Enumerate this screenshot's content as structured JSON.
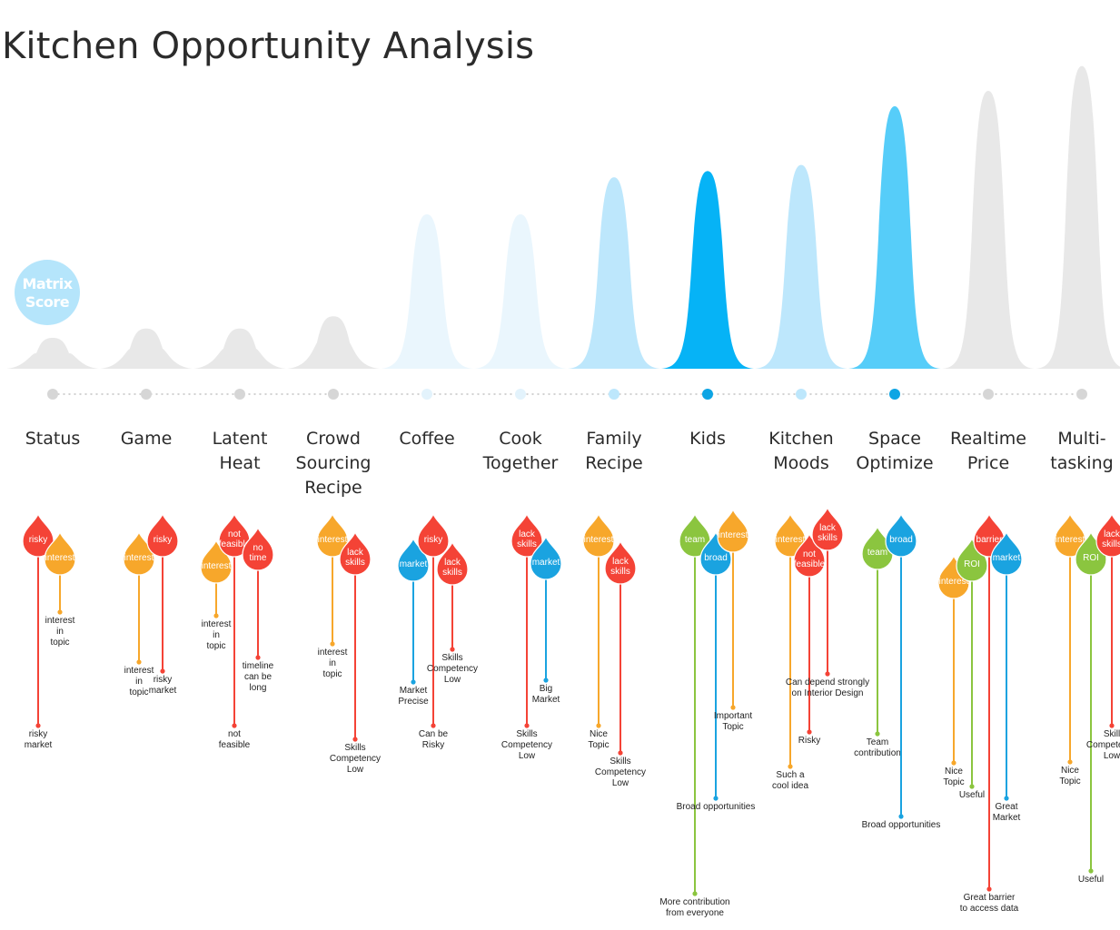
{
  "title": "Kitchen Opportunity Analysis",
  "colors": {
    "risk": "#f44336",
    "interest": "#f7a72b",
    "market": "#1aa3e0",
    "team": "#8bc53f",
    "gray_peak": "#e6e6e6",
    "dot_gray": "#d3d3d3",
    "badge": "#b5e5fb"
  },
  "chart_data": {
    "type": "area",
    "badge": [
      "Matrix",
      "Score"
    ],
    "categories": [
      {
        "label": [
          "Status"
        ],
        "score": 1.0,
        "color": "#e8e8e8",
        "dot": "#d6d6d6",
        "markers": [
          {
            "text": [
              "risky"
            ],
            "kind": "risk",
            "dx": -16,
            "dy": 0,
            "len": 205,
            "note": [
              "risky",
              "market"
            ]
          },
          {
            "text": [
              "interest"
            ],
            "kind": "interest",
            "dx": 8,
            "dy": 20,
            "len": 60,
            "note": [
              "interest",
              "in",
              "topic"
            ]
          }
        ]
      },
      {
        "label": [
          "Game"
        ],
        "score": 1.3,
        "color": "#e8e8e8",
        "dot": "#d6d6d6",
        "markers": [
          {
            "text": [
              "interest"
            ],
            "kind": "interest",
            "dx": -8,
            "dy": 20,
            "len": 115,
            "note": [
              "interest",
              "in",
              "topic"
            ]
          },
          {
            "text": [
              "risky"
            ],
            "kind": "risk",
            "dx": 18,
            "dy": 0,
            "len": 145,
            "note": [
              "risky",
              "market"
            ]
          }
        ]
      },
      {
        "label": [
          "Latent",
          "Heat"
        ],
        "score": 1.3,
        "color": "#e8e8e8",
        "dot": "#d6d6d6",
        "markers": [
          {
            "text": [
              "interest"
            ],
            "kind": "interest",
            "dx": -26,
            "dy": 29,
            "len": 55,
            "note": [
              "interest",
              "in",
              "topic"
            ]
          },
          {
            "text": [
              "not",
              "feasible"
            ],
            "kind": "risk",
            "dx": -6,
            "dy": 0,
            "len": 205,
            "note": [
              "not",
              "feasible"
            ]
          },
          {
            "text": [
              "no",
              "time"
            ],
            "kind": "risk",
            "dx": 20,
            "dy": 15,
            "len": 115,
            "note": [
              "timeline",
              "can be",
              "long"
            ]
          }
        ]
      },
      {
        "label": [
          "Crowd",
          "Sourcing",
          "Recipe"
        ],
        "score": 1.7,
        "color": "#e8e8e8",
        "dot": "#d6d6d6",
        "markers": [
          {
            "text": [
              "interest"
            ],
            "kind": "interest",
            "dx": -1,
            "dy": 0,
            "len": 115,
            "note": [
              "interest",
              "in",
              "topic"
            ]
          },
          {
            "text": [
              "lack",
              "skills"
            ],
            "kind": "risk",
            "dx": 24,
            "dy": 20,
            "len": 200,
            "note": [
              "Skills",
              "Competency",
              "Low"
            ]
          }
        ]
      },
      {
        "label": [
          "Coffee"
        ],
        "score": 5.0,
        "color": "#eaf6fd",
        "dot": "#e3f3fc",
        "markers": [
          {
            "text": [
              "market"
            ],
            "kind": "market",
            "dx": -15,
            "dy": 27,
            "len": 130,
            "note": [
              "Market",
              "Precise"
            ]
          },
          {
            "text": [
              "risky"
            ],
            "kind": "risk",
            "dx": 7,
            "dy": 0,
            "len": 205,
            "note": [
              "Can be",
              "Risky"
            ]
          },
          {
            "text": [
              "lack",
              "skills"
            ],
            "kind": "risk",
            "dx": 28,
            "dy": 31,
            "len": 90,
            "note": [
              "Skills",
              "Competency",
              "Low"
            ]
          }
        ]
      },
      {
        "label": [
          "Cook",
          "Together"
        ],
        "score": 5.0,
        "color": "#eaf6fd",
        "dot": "#e3f3fc",
        "markers": [
          {
            "text": [
              "lack",
              "skills"
            ],
            "kind": "risk",
            "dx": 7,
            "dy": 0,
            "len": 205,
            "note": [
              "Skills",
              "Competency",
              "Low"
            ]
          },
          {
            "text": [
              "market"
            ],
            "kind": "market",
            "dx": 28,
            "dy": 25,
            "len": 130,
            "note": [
              "Big",
              "Market"
            ]
          }
        ]
      },
      {
        "label": [
          "Family",
          "Recipe"
        ],
        "score": 6.2,
        "color": "#bde7fc",
        "dot": "#bde7fc",
        "markers": [
          {
            "text": [
              "interest"
            ],
            "kind": "interest",
            "dx": -17,
            "dy": 0,
            "len": 205,
            "note": [
              "Nice",
              "Topic"
            ]
          },
          {
            "text": [
              "lack",
              "skills"
            ],
            "kind": "risk",
            "dx": 7,
            "dy": 30,
            "len": 205,
            "note": [
              "Skills",
              "Competency",
              "Low"
            ]
          }
        ]
      },
      {
        "label": [
          "Kids"
        ],
        "score": 6.4,
        "color": "#06b3f6",
        "dot": "#0ea5e4",
        "markers": [
          {
            "text": [
              "team"
            ],
            "kind": "team",
            "dx": -14,
            "dy": 0,
            "len": 390,
            "note": [
              "More contribution",
              "from everyone"
            ]
          },
          {
            "text": [
              "broad"
            ],
            "kind": "market",
            "dx": 9,
            "dy": 20,
            "len": 265,
            "note": [
              "Broad opportunities"
            ]
          },
          {
            "text": [
              "interest"
            ],
            "kind": "interest",
            "dx": 28,
            "dy": -5,
            "len": 190,
            "note": [
              "Important",
              "Topic"
            ]
          }
        ]
      },
      {
        "label": [
          "Kitchen",
          "Moods"
        ],
        "score": 6.6,
        "color": "#bde7fc",
        "dot": "#bde7fc",
        "markers": [
          {
            "text": [
              "interest"
            ],
            "kind": "interest",
            "dx": -12,
            "dy": 0,
            "len": 250,
            "note": [
              "Such a",
              "cool idea"
            ]
          },
          {
            "text": [
              "not",
              "feasible"
            ],
            "kind": "risk",
            "dx": 9,
            "dy": 22,
            "len": 190,
            "note": [
              "Risky"
            ]
          },
          {
            "text": [
              "lack",
              "skills"
            ],
            "kind": "risk",
            "dx": 29,
            "dy": -7,
            "len": 155,
            "note": [
              "Can depend strongly",
              "on Interior Design"
            ]
          }
        ]
      },
      {
        "label": [
          "Space",
          "Optimize"
        ],
        "score": 8.5,
        "color": "#56cdf9",
        "dot": "#0ea5e4",
        "markers": [
          {
            "text": [
              "team"
            ],
            "kind": "team",
            "dx": -19,
            "dy": 14,
            "len": 200,
            "note": [
              "Team",
              "contribution"
            ]
          },
          {
            "text": [
              "broad"
            ],
            "kind": "market",
            "dx": 7,
            "dy": 0,
            "len": 305,
            "note": [
              "Broad opportunities"
            ]
          }
        ]
      },
      {
        "label": [
          "Realtime",
          "Price"
        ],
        "score": 9.0,
        "color": "#e8e8e8",
        "dot": "#d6d6d6",
        "markers": [
          {
            "text": [
              "interest"
            ],
            "kind": "interest",
            "dx": -38,
            "dy": 46,
            "len": 200,
            "note": [
              "Nice",
              "Topic"
            ]
          },
          {
            "text": [
              "ROI"
            ],
            "kind": "team",
            "dx": -18,
            "dy": 27,
            "len": 245,
            "note": [
              "Useful"
            ]
          },
          {
            "text": [
              "barrier"
            ],
            "kind": "risk",
            "dx": 1,
            "dy": 0,
            "len": 385,
            "note": [
              "Great barrier",
              "to access data"
            ]
          },
          {
            "text": [
              "market"
            ],
            "kind": "market",
            "dx": 20,
            "dy": 20,
            "len": 265,
            "note": [
              "Great",
              "Market"
            ]
          }
        ]
      },
      {
        "label": [
          "Multi-",
          "tasking"
        ],
        "score": 9.8,
        "color": "#e8e8e8",
        "dot": "#d6d6d6",
        "markers": [
          {
            "text": [
              "interest"
            ],
            "kind": "interest",
            "dx": -13,
            "dy": 0,
            "len": 245,
            "note": [
              "Nice",
              "Topic"
            ]
          },
          {
            "text": [
              "ROI"
            ],
            "kind": "team",
            "dx": 10,
            "dy": 20,
            "len": 345,
            "note": [
              "Useful"
            ]
          },
          {
            "text": [
              "lack",
              "skills"
            ],
            "kind": "risk",
            "dx": 33,
            "dy": 0,
            "len": 205,
            "note": [
              "Skill",
              "Competency",
              "Low"
            ]
          }
        ]
      }
    ]
  }
}
